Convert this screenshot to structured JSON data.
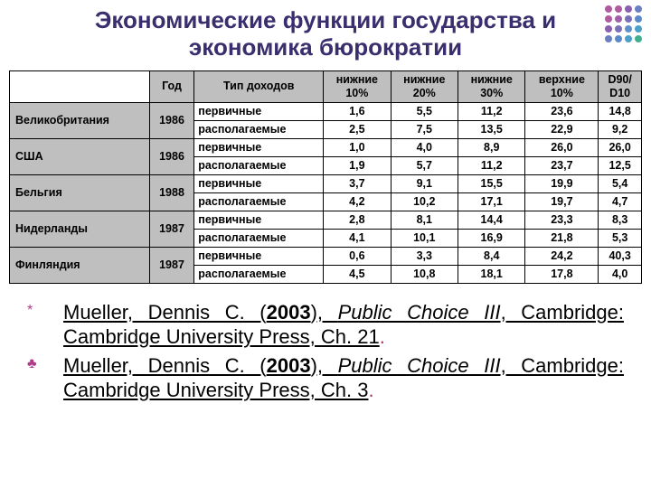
{
  "title_line1": "Экономические функции государства и",
  "title_line2": "экономика бюрократии",
  "title_fontsize": 26,
  "title_color": "#3a2e6e",
  "corner_dots": {
    "rows": 4,
    "cols": 4,
    "colors": [
      "#b05aa0",
      "#b05aa0",
      "#8a5fb0",
      "#6a7fc0",
      "#b05aa0",
      "#a060a8",
      "#7a70b8",
      "#5a88c8",
      "#8a5fb0",
      "#7a70b8",
      "#6090c8",
      "#4aa0c8",
      "#6a7fc0",
      "#5a88c8",
      "#4aa0c8",
      "#40b090"
    ]
  },
  "table": {
    "header_bg": "#bfbfbf",
    "country_bg": "#bfbfbf",
    "border_color": "#000000",
    "fontsize": 12.5,
    "columns": [
      "",
      "Год",
      "Тип доходов",
      "нижние 10%",
      "нижние 20%",
      "нижние 30%",
      "верхние 10%",
      "D90/ D10"
    ],
    "countries": [
      {
        "name": "Великобритания",
        "year": "1986",
        "rows": [
          {
            "type": "первичные",
            "v": [
              "1,6",
              "5,5",
              "11,2",
              "23,6",
              "14,8"
            ]
          },
          {
            "type": "располагаемые",
            "v": [
              "2,5",
              "7,5",
              "13,5",
              "22,9",
              "9,2"
            ]
          }
        ]
      },
      {
        "name": "США",
        "year": "1986",
        "rows": [
          {
            "type": "первичные",
            "v": [
              "1,0",
              "4,0",
              "8,9",
              "26,0",
              "26,0"
            ]
          },
          {
            "type": "располагаемые",
            "v": [
              "1,9",
              "5,7",
              "11,2",
              "23,7",
              "12,5"
            ]
          }
        ]
      },
      {
        "name": "Бельгия",
        "year": "1988",
        "rows": [
          {
            "type": "первичные",
            "v": [
              "3,7",
              "9,1",
              "15,5",
              "19,9",
              "5,4"
            ]
          },
          {
            "type": "располагаемые",
            "v": [
              "4,2",
              "10,2",
              "17,1",
              "19,7",
              "4,7"
            ]
          }
        ]
      },
      {
        "name": "Нидерланды",
        "year": "1987",
        "rows": [
          {
            "type": "первичные",
            "v": [
              "2,8",
              "8,1",
              "14,4",
              "23,3",
              "8,3"
            ]
          },
          {
            "type": "располагаемые",
            "v": [
              "4,1",
              "10,1",
              "16,9",
              "21,8",
              "5,3"
            ]
          }
        ]
      },
      {
        "name": "Финляндия",
        "year": "1987",
        "rows": [
          {
            "type": "первичные",
            "v": [
              "0,6",
              "3,3",
              "8,4",
              "24,2",
              "40,3"
            ]
          },
          {
            "type": "располагаемые",
            "v": [
              "4,5",
              "10,8",
              "18,1",
              "17,8",
              "4,0"
            ]
          }
        ]
      }
    ]
  },
  "refs": [
    {
      "marker": "*",
      "text_parts": [
        "Mueller, Dennis C. (",
        "2003",
        "), ",
        "Public Choice III",
        ", Cambridge: Cambridge University Press, Ch. 21",
        "."
      ]
    },
    {
      "marker": "♣",
      "text_parts": [
        "Mueller, Dennis C. (",
        "2003",
        "), ",
        "Public Choice III",
        ", Cambridge: Cambridge University Press, Ch. 3",
        "."
      ]
    }
  ],
  "ref_fontsize": 22,
  "ref_marker_color": "#b03a8c",
  "ref_dot_color": "#b03070"
}
